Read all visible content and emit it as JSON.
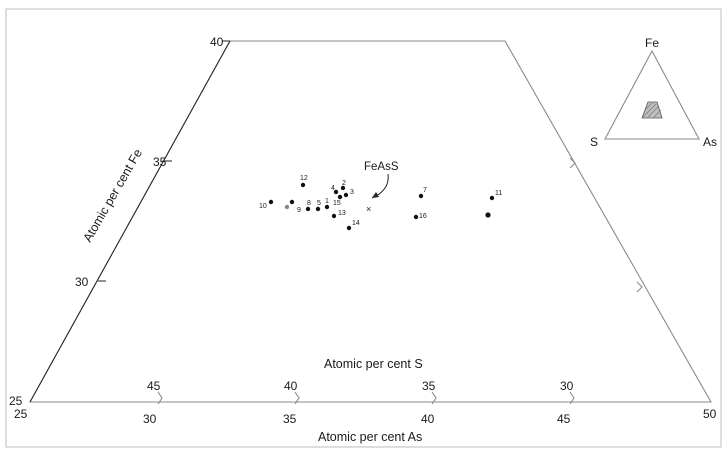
{
  "figure": {
    "fe_label": "Atomic per cent Fe",
    "s_label": "Atomic per cent S",
    "as_label": "Atomic per cent As",
    "fe_ticks": [
      "40",
      "35",
      "30",
      "25"
    ],
    "s_ticks": [
      "45",
      "40",
      "35",
      "30"
    ],
    "as_ticks": [
      "25",
      "30",
      "35",
      "40",
      "45",
      "50"
    ],
    "feass_label": "FeAsS",
    "inset": {
      "fe": "Fe",
      "s": "S",
      "as": "As"
    }
  },
  "points": [
    {
      "label": "12"
    },
    {
      "label": "2"
    },
    {
      "label": "4"
    },
    {
      "label": "3"
    },
    {
      "label": "15"
    },
    {
      "label": "10"
    },
    {
      "label": "9"
    },
    {
      "label": "8"
    },
    {
      "label": "5"
    },
    {
      "label": "13"
    },
    {
      "label": "1"
    },
    {
      "label": "14"
    },
    {
      "label": "7"
    },
    {
      "label": "16"
    },
    {
      "label": "11"
    },
    {
      "label": ""
    },
    {
      "label": ""
    }
  ]
}
